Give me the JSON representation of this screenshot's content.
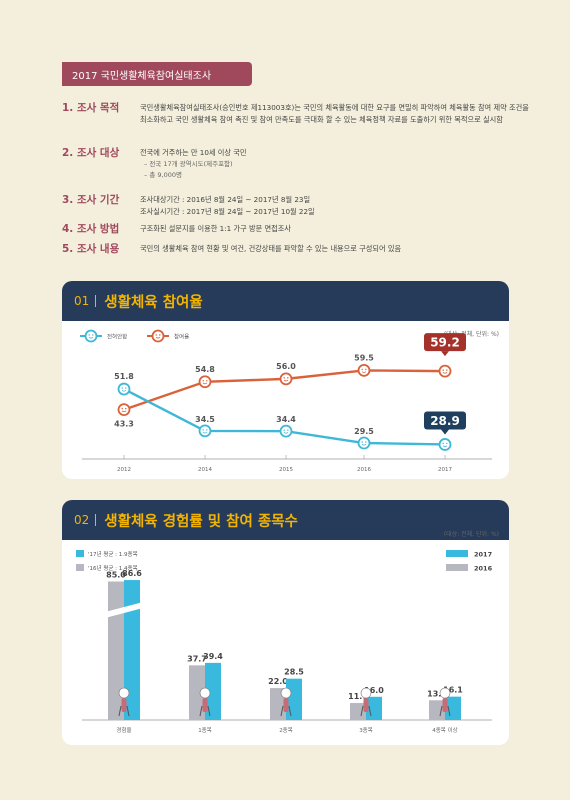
{
  "survey": {
    "title": "2017 국민생활체육참여실태조사",
    "items": [
      {
        "label": "1. 조사 목적",
        "text": "국민생활체육참여실태조사(승인번호 제113003호)는 국민의 체육활동에 대한 요구를 면밀히 파악하여 체육활동 참여 제약 조건을 최소화하고 국민 생활체육 참여 촉진 및 참여 만족도를 극대화 할 수 있는 체육정책 자료를 도출하기 위한 목적으로 실시함",
        "subs": []
      },
      {
        "label": "2. 조사 대상",
        "text": "전국에 거주하는 만 10세 이상 국민",
        "subs": [
          "– 전국 17개 광역시도(제주포함)",
          "– 총 9,000명"
        ]
      },
      {
        "label": "3. 조사 기간",
        "text": "조사대상기간 : 2016년 8월 24일 ~ 2017년 8월 23일",
        "subs": [
          "조사실시기간 : 2017년 8월 24일 ~ 2017년 10월 22일"
        ]
      },
      {
        "label": "4. 조사 방법",
        "text": "구조화된 설문지를 이용한 1:1 가구 방문 면접조사",
        "subs": []
      },
      {
        "label": "5. 조사 내용",
        "text": "국민의 생활체육 참여 현황 및 여건, 건강상태를 파악할 수 있는 내용으로 구성되어 있음",
        "subs": []
      }
    ]
  },
  "card1": {
    "num": "01",
    "title": "생활체육 참여율",
    "unit": "(대상: 전체, 단위: %)"
  },
  "card2": {
    "num": "02",
    "title": "생활체육 경험률 및 참여 종목수",
    "unit": "(대상: 전체, 단위: %)"
  },
  "chart_data": [
    {
      "type": "line",
      "x": [
        "2012",
        "2014",
        "2015",
        "2016",
        "2017"
      ],
      "series": [
        {
          "name": "참여율",
          "values": [
            43.3,
            54.8,
            56.0,
            59.5,
            59.2
          ],
          "color": "#d9623b"
        },
        {
          "name": "전혀안함",
          "values": [
            51.8,
            34.5,
            34.4,
            29.5,
            28.9
          ],
          "color": "#3fb8d8"
        }
      ],
      "highlight": {
        "참여율": "59.2",
        "전혀안함": "28.9"
      },
      "ylim": [
        20,
        70
      ],
      "grid": false
    },
    {
      "type": "bar",
      "categories": [
        "경험율",
        "1종목",
        "2종목",
        "3종목",
        "4종목 이상"
      ],
      "series": [
        {
          "name": "2016",
          "values": [
            85.0,
            37.7,
            22.0,
            11.7,
            13.6
          ],
          "color": "#b7b7bf"
        },
        {
          "name": "2017",
          "values": [
            86.6,
            39.4,
            28.5,
            16.0,
            16.1
          ],
          "color": "#39b9dd"
        }
      ],
      "notes": [
        "'17년 평균 : 1.9종목",
        "'16년 평균 : 1.4종목"
      ],
      "axis_break": true,
      "ylim": [
        0,
        90
      ]
    }
  ]
}
